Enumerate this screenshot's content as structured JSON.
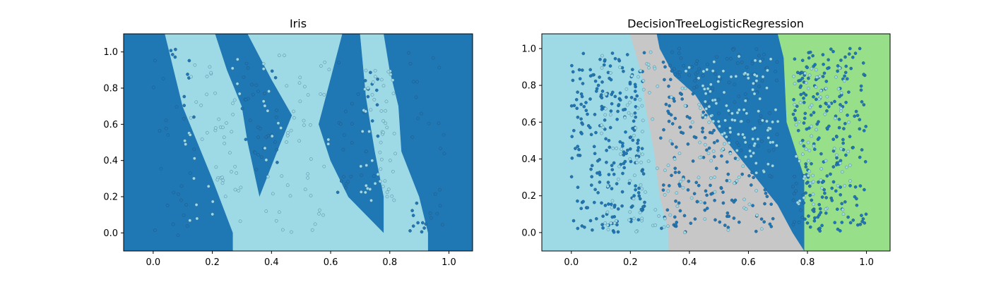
{
  "figure": {
    "background": "#ffffff"
  },
  "chart_data": [
    {
      "type": "scatter",
      "title": "Iris",
      "xlabel": "",
      "ylabel": "",
      "xlim": [
        -0.1,
        1.08
      ],
      "ylim": [
        -0.1,
        1.1
      ],
      "xticks": [
        0.0,
        0.2,
        0.4,
        0.6,
        0.8,
        1.0
      ],
      "yticks": [
        0.0,
        0.2,
        0.4,
        0.6,
        0.8,
        1.0
      ],
      "xtick_labels": [
        "0.0",
        "0.2",
        "0.4",
        "0.6",
        "0.8",
        "1.0"
      ],
      "ytick_labels": [
        "0.0",
        "0.2",
        "0.4",
        "0.6",
        "0.8",
        "1.0"
      ],
      "grid": false,
      "regions": [
        {
          "class": "dark",
          "color": "#1f77b4",
          "polygon": [
            [
              -0.1,
              -0.1
            ],
            [
              0.27,
              -0.1
            ],
            [
              0.27,
              0.0
            ],
            [
              0.2,
              0.3
            ],
            [
              0.1,
              0.7
            ],
            [
              0.04,
              1.1
            ],
            [
              -0.1,
              1.1
            ]
          ]
        },
        {
          "class": "light",
          "color": "#9edae5",
          "polygon": [
            [
              0.27,
              -0.1
            ],
            [
              0.37,
              -0.1
            ],
            [
              0.37,
              0.1
            ],
            [
              0.36,
              0.2
            ],
            [
              0.32,
              0.5
            ],
            [
              0.3,
              0.7
            ],
            [
              0.25,
              0.9
            ],
            [
              0.21,
              1.1
            ],
            [
              0.04,
              1.1
            ],
            [
              0.1,
              0.7
            ],
            [
              0.2,
              0.3
            ],
            [
              0.27,
              0.0
            ]
          ]
        },
        {
          "class": "dark",
          "color": "#1f77b4",
          "polygon": [
            [
              0.36,
              0.2
            ],
            [
              0.42,
              0.45
            ],
            [
              0.47,
              0.65
            ],
            [
              0.4,
              0.85
            ],
            [
              0.32,
              1.1
            ],
            [
              0.21,
              1.1
            ],
            [
              0.25,
              0.9
            ],
            [
              0.3,
              0.7
            ],
            [
              0.32,
              0.5
            ]
          ]
        },
        {
          "class": "light",
          "color": "#9edae5",
          "polygon": [
            [
              0.37,
              -0.1
            ],
            [
              0.78,
              -0.1
            ],
            [
              0.78,
              0.0
            ],
            [
              0.72,
              0.1
            ],
            [
              0.66,
              0.2
            ],
            [
              0.6,
              0.4
            ],
            [
              0.56,
              0.6
            ],
            [
              0.6,
              0.85
            ],
            [
              0.64,
              1.1
            ],
            [
              0.32,
              1.1
            ],
            [
              0.4,
              0.85
            ],
            [
              0.47,
              0.65
            ],
            [
              0.42,
              0.45
            ],
            [
              0.36,
              0.2
            ],
            [
              0.37,
              0.1
            ]
          ]
        },
        {
          "class": "dark",
          "color": "#1f77b4",
          "polygon": [
            [
              0.66,
              0.2
            ],
            [
              0.72,
              0.1
            ],
            [
              0.78,
              0.0
            ],
            [
              0.78,
              0.2
            ],
            [
              0.75,
              0.45
            ],
            [
              0.72,
              0.75
            ],
            [
              0.7,
              1.1
            ],
            [
              0.64,
              1.1
            ],
            [
              0.6,
              0.85
            ],
            [
              0.56,
              0.6
            ],
            [
              0.6,
              0.4
            ]
          ]
        },
        {
          "class": "light",
          "color": "#9edae5",
          "polygon": [
            [
              0.78,
              -0.1
            ],
            [
              0.93,
              -0.1
            ],
            [
              0.93,
              0.0
            ],
            [
              0.9,
              0.2
            ],
            [
              0.84,
              0.45
            ],
            [
              0.83,
              0.7
            ],
            [
              0.8,
              0.9
            ],
            [
              0.78,
              1.1
            ],
            [
              0.7,
              1.1
            ],
            [
              0.72,
              0.75
            ],
            [
              0.75,
              0.45
            ],
            [
              0.78,
              0.2
            ]
          ]
        },
        {
          "class": "dark",
          "color": "#1f77b4",
          "polygon": [
            [
              0.93,
              -0.1
            ],
            [
              1.08,
              -0.1
            ],
            [
              1.08,
              1.1
            ],
            [
              0.78,
              1.1
            ],
            [
              0.8,
              0.9
            ],
            [
              0.83,
              0.7
            ],
            [
              0.84,
              0.45
            ],
            [
              0.9,
              0.2
            ],
            [
              0.93,
              0.0
            ]
          ]
        }
      ],
      "point_groups": [
        {
          "name": "",
          "color": "#1f77b4",
          "edge": "#1f4f78",
          "count": 130,
          "bands": [
            [
              0.0,
              0.14,
              -0.05,
              1.05
            ],
            [
              0.3,
              0.42,
              0.35,
              0.95
            ],
            [
              0.62,
              0.76,
              0.2,
              0.95
            ],
            [
              0.86,
              1.0,
              0.0,
              1.0
            ]
          ]
        },
        {
          "name": "",
          "color": "#9edae5",
          "edge": "#3b6f8a",
          "count": 170,
          "bands": [
            [
              0.1,
              0.3,
              0.0,
              1.0
            ],
            [
              0.37,
              0.6,
              0.0,
              1.0
            ],
            [
              0.7,
              0.82,
              0.15,
              0.9
            ]
          ]
        }
      ]
    },
    {
      "type": "scatter",
      "title": "DecisionTreeLogisticRegression",
      "xlabel": "",
      "ylabel": "",
      "xlim": [
        -0.1,
        1.08
      ],
      "ylim": [
        -0.1,
        1.08
      ],
      "xticks": [
        0.0,
        0.2,
        0.4,
        0.6,
        0.8,
        1.0
      ],
      "yticks": [
        0.0,
        0.2,
        0.4,
        0.6,
        0.8,
        1.0
      ],
      "xtick_labels": [
        "0.0",
        "0.2",
        "0.4",
        "0.6",
        "0.8",
        "1.0"
      ],
      "ytick_labels": [
        "0.0",
        "0.2",
        "0.4",
        "0.6",
        "0.8",
        "1.0"
      ],
      "grid": false,
      "regions": [
        {
          "class": "cyan",
          "color": "#9edae5",
          "polygon": [
            [
              -0.1,
              -0.1
            ],
            [
              0.33,
              -0.1
            ],
            [
              0.33,
              0.0
            ],
            [
              0.3,
              0.2
            ],
            [
              0.28,
              0.45
            ],
            [
              0.25,
              0.7
            ],
            [
              0.24,
              0.85
            ],
            [
              0.2,
              1.08
            ],
            [
              -0.1,
              1.08
            ]
          ]
        },
        {
          "class": "grey",
          "color": "#c7c7c7",
          "polygon": [
            [
              0.33,
              -0.1
            ],
            [
              0.79,
              -0.1
            ],
            [
              0.75,
              0.0
            ],
            [
              0.7,
              0.15
            ],
            [
              0.6,
              0.35
            ],
            [
              0.5,
              0.55
            ],
            [
              0.42,
              0.75
            ],
            [
              0.35,
              0.85
            ],
            [
              0.3,
              1.0
            ],
            [
              0.29,
              1.08
            ],
            [
              0.2,
              1.08
            ],
            [
              0.24,
              0.85
            ],
            [
              0.25,
              0.7
            ],
            [
              0.28,
              0.45
            ],
            [
              0.3,
              0.2
            ],
            [
              0.33,
              0.0
            ]
          ]
        },
        {
          "class": "blue",
          "color": "#1f77b4",
          "polygon": [
            [
              0.29,
              1.08
            ],
            [
              0.3,
              1.0
            ],
            [
              0.35,
              0.85
            ],
            [
              0.42,
              0.75
            ],
            [
              0.5,
              0.55
            ],
            [
              0.6,
              0.35
            ],
            [
              0.7,
              0.15
            ],
            [
              0.75,
              0.0
            ],
            [
              0.79,
              -0.1
            ],
            [
              0.79,
              0.3
            ],
            [
              0.73,
              0.6
            ],
            [
              0.72,
              0.95
            ],
            [
              0.7,
              1.08
            ]
          ]
        },
        {
          "class": "green",
          "color": "#98df8a",
          "polygon": [
            [
              0.79,
              -0.1
            ],
            [
              1.08,
              -0.1
            ],
            [
              1.08,
              1.08
            ],
            [
              0.7,
              1.08
            ],
            [
              0.72,
              0.95
            ],
            [
              0.73,
              0.6
            ],
            [
              0.79,
              0.3
            ]
          ]
        }
      ],
      "point_groups": [
        {
          "name": "",
          "color": "#1f77b4",
          "edge": "#1f4f78",
          "count": 700,
          "bands": [
            [
              0.0,
              0.25,
              0.0,
              1.0
            ],
            [
              0.3,
              0.7,
              0.0,
              1.0
            ],
            [
              0.75,
              1.0,
              0.0,
              1.0
            ]
          ]
        },
        {
          "name": "",
          "color": "#9edae5",
          "edge": "#3b6f8a",
          "count": 320,
          "bands": [
            [
              0.1,
              0.3,
              0.0,
              1.0
            ],
            [
              0.3,
              0.65,
              0.0,
              0.9
            ],
            [
              0.45,
              0.7,
              0.3,
              1.0
            ],
            [
              0.75,
              0.95,
              0.1,
              0.9
            ]
          ]
        }
      ]
    }
  ]
}
